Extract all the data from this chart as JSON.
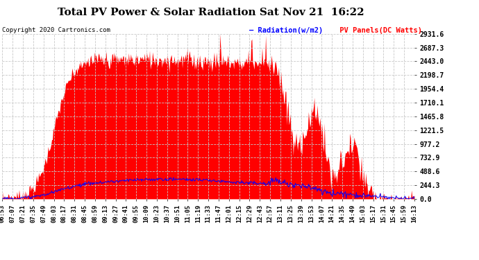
{
  "title": "Total PV Power & Solar Radiation Sat Nov 21  16:22",
  "copyright": "Copyright 2020 Cartronics.com",
  "legend_radiation": "Radiation(w/m2)",
  "legend_pv": "PV Panels(DC Watts)",
  "radiation_color": "blue",
  "pv_color": "red",
  "background_color": "#ffffff",
  "plot_bg_color": "#ffffff",
  "grid_color": "#c8c8c8",
  "y_ticks": [
    0.0,
    244.3,
    488.6,
    732.9,
    977.2,
    1221.5,
    1465.8,
    1710.1,
    1954.4,
    2198.7,
    2443.0,
    2687.3,
    2931.6
  ],
  "x_labels": [
    "06:53",
    "07:07",
    "07:21",
    "07:35",
    "07:49",
    "08:03",
    "08:17",
    "08:31",
    "08:45",
    "08:59",
    "09:13",
    "09:27",
    "09:41",
    "09:55",
    "10:09",
    "10:23",
    "10:37",
    "10:51",
    "11:05",
    "11:19",
    "11:33",
    "11:47",
    "12:01",
    "12:15",
    "12:29",
    "12:43",
    "12:57",
    "13:11",
    "13:25",
    "13:39",
    "13:53",
    "14:07",
    "14:21",
    "14:35",
    "14:49",
    "15:03",
    "15:17",
    "15:31",
    "15:45",
    "15:59",
    "16:13"
  ],
  "ylim": [
    0,
    2931.6
  ],
  "figsize": [
    6.9,
    3.75
  ],
  "dpi": 100
}
